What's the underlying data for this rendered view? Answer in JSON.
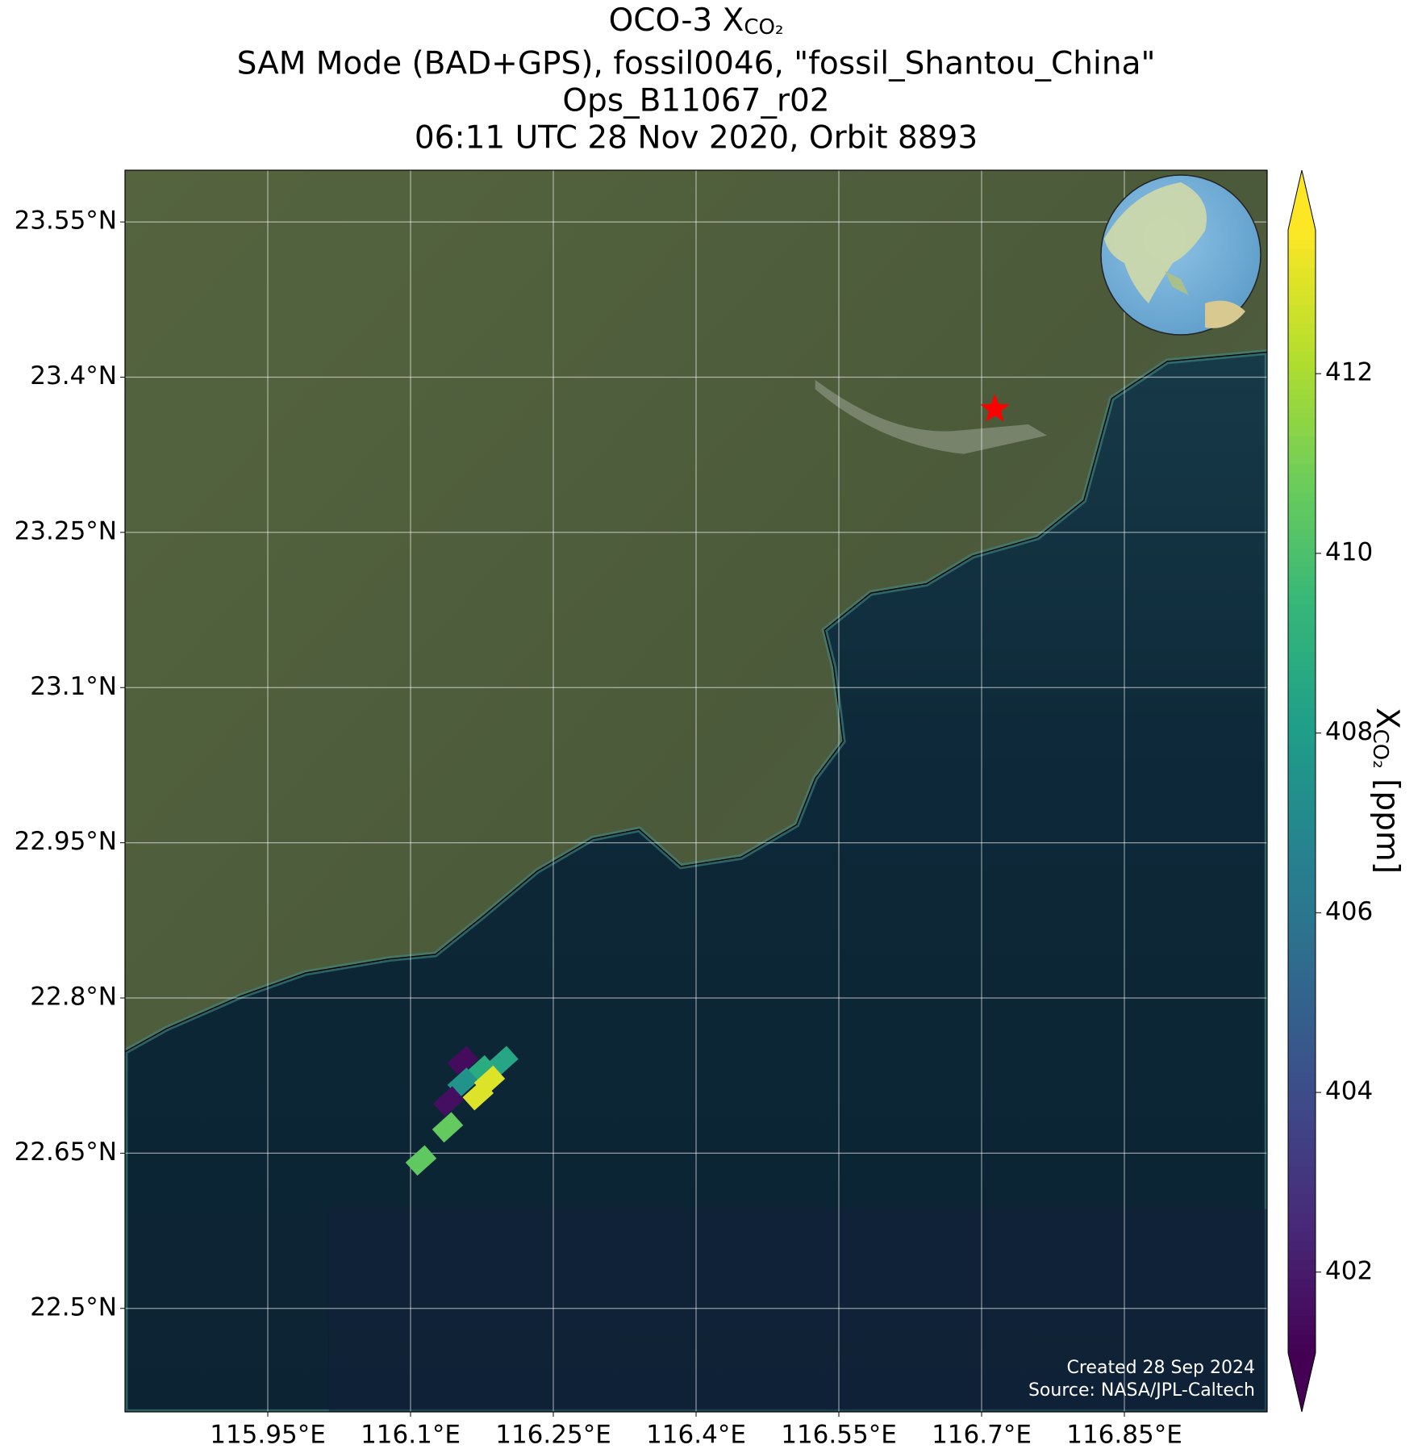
{
  "chart_data": {
    "type": "map",
    "title": {
      "prefix": "OCO-3 X",
      "sub": "CO₂"
    },
    "subtitle_lines": [
      "SAM Mode (BAD+GPS), fossil0046, \"fossil_Shantou_China\"",
      "Ops_B11067_r02",
      "06:11 UTC 28 Nov 2020, Orbit 8893"
    ],
    "xlim": [
      115.8,
      117.0
    ],
    "ylim": [
      22.4,
      23.6
    ],
    "xticks": [
      {
        "value": 115.95,
        "label": "115.95°E"
      },
      {
        "value": 116.1,
        "label": "116.1°E"
      },
      {
        "value": 116.25,
        "label": "116.25°E"
      },
      {
        "value": 116.4,
        "label": "116.4°E"
      },
      {
        "value": 116.55,
        "label": "116.55°E"
      },
      {
        "value": 116.7,
        "label": "116.7°E"
      },
      {
        "value": 116.85,
        "label": "116.85°E"
      }
    ],
    "yticks": [
      {
        "value": 22.5,
        "label": "22.5°N"
      },
      {
        "value": 22.65,
        "label": "22.65°N"
      },
      {
        "value": 22.8,
        "label": "22.8°N"
      },
      {
        "value": 22.95,
        "label": "22.95°N"
      },
      {
        "value": 23.1,
        "label": "23.1°N"
      },
      {
        "value": 23.25,
        "label": "23.25°N"
      },
      {
        "value": 23.4,
        "label": "23.4°N"
      },
      {
        "value": 23.55,
        "label": "23.55°N"
      }
    ],
    "grid": true,
    "x": [
      116.155,
      116.197,
      116.174,
      116.155,
      116.183,
      116.171,
      116.14,
      116.139,
      116.111
    ],
    "y": [
      22.739,
      22.739,
      22.73,
      22.718,
      22.72,
      22.706,
      22.7,
      22.675,
      22.643
    ],
    "values": [
      401.5,
      408.5,
      408.8,
      407.5,
      413.0,
      413.0,
      401.6,
      410.6,
      410.5
    ],
    "target": {
      "x": 116.714,
      "y": 23.369,
      "color": "#ff0000"
    },
    "colormap": "viridis",
    "colorbar": {
      "clim": [
        401.1,
        413.6
      ],
      "ticks": [
        402,
        404,
        406,
        408,
        410,
        412
      ],
      "label": "X",
      "label_sub": "CO₂",
      "label_unit": "[ppm]"
    },
    "credits": [
      "Created 28 Sep 2024",
      "Source: NASA/JPL-Caltech"
    ]
  }
}
